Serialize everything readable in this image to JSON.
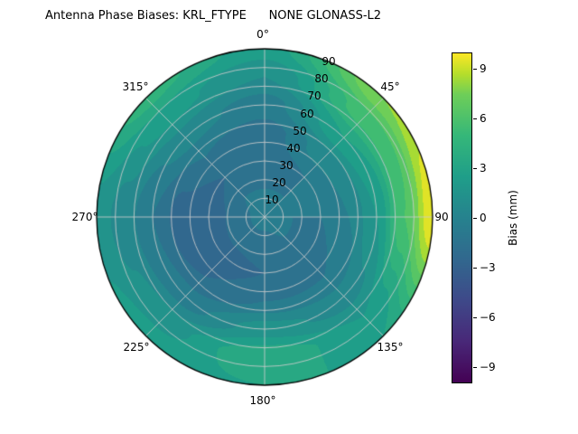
{
  "chart_data": {
    "type": "heatmap",
    "projection": "polar",
    "title": "Antenna Phase Biases: KRL_FTYPE      NONE GLONASS-L2",
    "azimuth_ticks": [
      {
        "angle_deg": 0,
        "label": "0°"
      },
      {
        "angle_deg": 45,
        "label": "45°"
      },
      {
        "angle_deg": 90,
        "label": "90"
      },
      {
        "angle_deg": 135,
        "label": "135°"
      },
      {
        "angle_deg": 180,
        "label": "180°"
      },
      {
        "angle_deg": 225,
        "label": "225°"
      },
      {
        "angle_deg": 270,
        "label": "270°"
      },
      {
        "angle_deg": 315,
        "label": "315°"
      }
    ],
    "radial_ticks": [
      {
        "zenith_deg": 10,
        "label": "10"
      },
      {
        "zenith_deg": 20,
        "label": "20"
      },
      {
        "zenith_deg": 30,
        "label": "30"
      },
      {
        "zenith_deg": 40,
        "label": "40"
      },
      {
        "zenith_deg": 50,
        "label": "50"
      },
      {
        "zenith_deg": 60,
        "label": "60"
      },
      {
        "zenith_deg": 70,
        "label": "70"
      },
      {
        "zenith_deg": 80,
        "label": "80"
      },
      {
        "zenith_deg": 90,
        "label": "90"
      }
    ],
    "colorbar": {
      "label": "Bias (mm)",
      "ticks": [
        "9",
        "6",
        "3",
        "0",
        "−3",
        "−6",
        "−9"
      ],
      "tick_values": [
        9,
        6,
        3,
        0,
        -3,
        -6,
        -9
      ],
      "range": [
        -10,
        10
      ]
    },
    "value_range": [
      -10,
      10
    ],
    "contour_step_mm": 1,
    "field": {
      "units": "mm",
      "azimuths_deg": [
        0,
        45,
        90,
        135,
        180,
        225,
        270,
        315
      ],
      "zeniths_deg": [
        0,
        15,
        30,
        45,
        60,
        75,
        90
      ],
      "bias_mm": [
        [
          -0.5,
          -1.0,
          -1.5,
          -1.5,
          -0.5,
          1.0,
          2.5
        ],
        [
          -0.5,
          -1.0,
          -1.0,
          0.5,
          3.0,
          5.5,
          8.0
        ],
        [
          -0.5,
          -1.0,
          -1.0,
          0.0,
          2.0,
          6.0,
          10.0
        ],
        [
          -0.5,
          -1.0,
          -1.5,
          -1.0,
          0.5,
          2.0,
          3.0
        ],
        [
          -0.5,
          -1.5,
          -2.0,
          -1.0,
          1.5,
          4.0,
          3.0
        ],
        [
          -0.5,
          -1.5,
          -2.5,
          -2.0,
          -0.5,
          1.5,
          2.5
        ],
        [
          -0.5,
          -1.5,
          -3.0,
          -2.5,
          -1.0,
          0.5,
          1.5
        ],
        [
          -0.5,
          -1.0,
          -2.0,
          -1.0,
          0.5,
          2.5,
          4.5
        ]
      ]
    },
    "colormap": {
      "name": "viridis",
      "stops": [
        {
          "t": 0.0,
          "color": "#440154"
        },
        {
          "t": 0.125,
          "color": "#482878"
        },
        {
          "t": 0.25,
          "color": "#3e4989"
        },
        {
          "t": 0.375,
          "color": "#31688e"
        },
        {
          "t": 0.5,
          "color": "#26828e"
        },
        {
          "t": 0.625,
          "color": "#1f9e89"
        },
        {
          "t": 0.75,
          "color": "#35b779"
        },
        {
          "t": 0.875,
          "color": "#6ece58"
        },
        {
          "t": 0.9375,
          "color": "#b5de2b"
        },
        {
          "t": 1.0,
          "color": "#fde725"
        }
      ]
    },
    "grid_color": "#cdcdcd",
    "outline_color": "#000000",
    "background_color": "#ffffff"
  }
}
